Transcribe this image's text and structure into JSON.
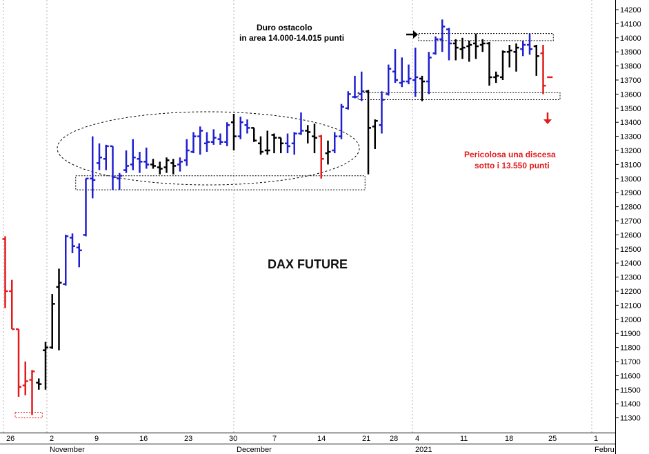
{
  "chart_data": {
    "type": "ohlc",
    "title": "DAX FUTURE",
    "y_axis": {
      "min": 11250,
      "max": 14250,
      "ticks": [
        11300,
        11400,
        11500,
        11600,
        11700,
        11800,
        11900,
        12000,
        12100,
        12200,
        12300,
        12400,
        12500,
        12600,
        12700,
        12800,
        12900,
        13000,
        13100,
        13200,
        13300,
        13400,
        13500,
        13600,
        13700,
        13800,
        13900,
        14000,
        14100,
        14200
      ],
      "position": "right"
    },
    "x_axis": {
      "tick_labels": [
        "26",
        "2",
        "9",
        "16",
        "23",
        "30",
        "7",
        "14",
        "21",
        "28",
        "4",
        "11",
        "18",
        "25",
        "1"
      ],
      "month_labels": [
        "November",
        "December",
        "2021",
        "Febru"
      ]
    },
    "series_colors": {
      "up_trend": "#1f1fd0",
      "neutral": "#000000",
      "down": "#e31a1a"
    },
    "bars": [
      {
        "c": "red",
        "o": 12570,
        "h": 12590,
        "l": 12080,
        "cl": 12200
      },
      {
        "c": "red",
        "o": 12200,
        "h": 12280,
        "l": 11930,
        "cl": 11930
      },
      {
        "c": "red",
        "o": 11930,
        "h": 11930,
        "l": 11450,
        "cl": 11520
      },
      {
        "c": "red",
        "o": 11530,
        "h": 11700,
        "l": 11460,
        "cl": 11560
      },
      {
        "c": "red",
        "o": 11570,
        "h": 11640,
        "l": 11320,
        "cl": 11630
      },
      {
        "c": "black",
        "o": 11550,
        "h": 11580,
        "l": 11500,
        "cl": 11540
      },
      {
        "c": "black",
        "o": 11780,
        "h": 11840,
        "l": 11500,
        "cl": 11800
      },
      {
        "c": "black",
        "o": 11800,
        "h": 12180,
        "l": 11790,
        "cl": 12110
      },
      {
        "c": "black",
        "o": 12230,
        "h": 12360,
        "l": 11780,
        "cl": 12260
      },
      {
        "c": "blue",
        "o": 12250,
        "h": 12600,
        "l": 12240,
        "cl": 12590
      },
      {
        "c": "blue",
        "o": 12580,
        "h": 12610,
        "l": 12470,
        "cl": 12520
      },
      {
        "c": "blue",
        "o": 12510,
        "h": 12540,
        "l": 12370,
        "cl": 12490
      },
      {
        "c": "blue",
        "o": 12600,
        "h": 13000,
        "l": 12590,
        "cl": 13000
      },
      {
        "c": "blue",
        "o": 13000,
        "h": 13300,
        "l": 12860,
        "cl": 12990
      },
      {
        "c": "blue",
        "o": 13110,
        "h": 13250,
        "l": 13060,
        "cl": 13150
      },
      {
        "c": "blue",
        "o": 13140,
        "h": 13240,
        "l": 13060,
        "cl": 13230
      },
      {
        "c": "blue",
        "o": 13230,
        "h": 13230,
        "l": 12920,
        "cl": 13010
      },
      {
        "c": "blue",
        "o": 13000,
        "h": 13040,
        "l": 12920,
        "cl": 13020
      },
      {
        "c": "blue",
        "o": 13060,
        "h": 13200,
        "l": 13040,
        "cl": 13090
      },
      {
        "c": "blue",
        "o": 13100,
        "h": 13280,
        "l": 13060,
        "cl": 13150
      },
      {
        "c": "blue",
        "o": 13140,
        "h": 13190,
        "l": 13040,
        "cl": 13120
      },
      {
        "c": "blue",
        "o": 13120,
        "h": 13220,
        "l": 13070,
        "cl": 13100
      },
      {
        "c": "black",
        "o": 13100,
        "h": 13140,
        "l": 13070,
        "cl": 13090
      },
      {
        "c": "black",
        "o": 13080,
        "h": 13120,
        "l": 13030,
        "cl": 13070
      },
      {
        "c": "black",
        "o": 13080,
        "h": 13150,
        "l": 13040,
        "cl": 13130
      },
      {
        "c": "black",
        "o": 13110,
        "h": 13140,
        "l": 13030,
        "cl": 13090
      },
      {
        "c": "blue",
        "o": 13100,
        "h": 13150,
        "l": 13050,
        "cl": 13120
      },
      {
        "c": "blue",
        "o": 13130,
        "h": 13280,
        "l": 13090,
        "cl": 13200
      },
      {
        "c": "blue",
        "o": 13190,
        "h": 13330,
        "l": 13180,
        "cl": 13300
      },
      {
        "c": "blue",
        "o": 13300,
        "h": 13370,
        "l": 13170,
        "cl": 13340
      },
      {
        "c": "blue",
        "o": 13250,
        "h": 13330,
        "l": 13190,
        "cl": 13260
      },
      {
        "c": "blue",
        "o": 13260,
        "h": 13350,
        "l": 13240,
        "cl": 13290
      },
      {
        "c": "blue",
        "o": 13280,
        "h": 13320,
        "l": 13240,
        "cl": 13260
      },
      {
        "c": "blue",
        "o": 13260,
        "h": 13400,
        "l": 13230,
        "cl": 13380
      },
      {
        "c": "black",
        "o": 13400,
        "h": 13460,
        "l": 13200,
        "cl": 13300
      },
      {
        "c": "blue",
        "o": 13300,
        "h": 13440,
        "l": 13280,
        "cl": 13400
      },
      {
        "c": "blue",
        "o": 13380,
        "h": 13420,
        "l": 13320,
        "cl": 13360
      },
      {
        "c": "black",
        "o": 13360,
        "h": 13360,
        "l": 13260,
        "cl": 13270
      },
      {
        "c": "black",
        "o": 13250,
        "h": 13300,
        "l": 13170,
        "cl": 13190
      },
      {
        "c": "black",
        "o": 13200,
        "h": 13340,
        "l": 13170,
        "cl": 13200
      },
      {
        "c": "black",
        "o": 13310,
        "h": 13320,
        "l": 13180,
        "cl": 13290
      },
      {
        "c": "black",
        "o": 13290,
        "h": 13290,
        "l": 13180,
        "cl": 13250
      },
      {
        "c": "blue",
        "o": 13250,
        "h": 13320,
        "l": 13180,
        "cl": 13230
      },
      {
        "c": "blue",
        "o": 13250,
        "h": 13330,
        "l": 13170,
        "cl": 13320
      },
      {
        "c": "blue",
        "o": 13320,
        "h": 13470,
        "l": 13310,
        "cl": 13340
      },
      {
        "c": "black",
        "o": 13340,
        "h": 13380,
        "l": 13250,
        "cl": 13330
      },
      {
        "c": "black",
        "o": 13300,
        "h": 13390,
        "l": 13180,
        "cl": 13290
      },
      {
        "c": "red",
        "o": 13300,
        "h": 13310,
        "l": 13000,
        "cl": 13140
      },
      {
        "c": "black",
        "o": 13180,
        "h": 13270,
        "l": 13100,
        "cl": 13190
      },
      {
        "c": "blue",
        "o": 13200,
        "h": 13330,
        "l": 13180,
        "cl": 13300
      },
      {
        "c": "blue",
        "o": 13300,
        "h": 13530,
        "l": 13280,
        "cl": 13510
      },
      {
        "c": "blue",
        "o": 13500,
        "h": 13620,
        "l": 13490,
        "cl": 13600
      },
      {
        "c": "blue",
        "o": 13580,
        "h": 13730,
        "l": 13570,
        "cl": 13580
      },
      {
        "c": "blue",
        "o": 13600,
        "h": 13760,
        "l": 13550,
        "cl": 13620
      },
      {
        "c": "black",
        "o": 13620,
        "h": 13630,
        "l": 13030,
        "cl": 13360
      },
      {
        "c": "black",
        "o": 13370,
        "h": 13420,
        "l": 13210,
        "cl": 13410
      },
      {
        "c": "blue",
        "o": 13380,
        "h": 13620,
        "l": 13320,
        "cl": 13560
      },
      {
        "c": "blue",
        "o": 13600,
        "h": 13810,
        "l": 13590,
        "cl": 13780
      },
      {
        "c": "blue",
        "o": 13760,
        "h": 13920,
        "l": 13680,
        "cl": 13700
      },
      {
        "c": "blue",
        "o": 13680,
        "h": 13860,
        "l": 13650,
        "cl": 13690
      },
      {
        "c": "blue",
        "o": 13690,
        "h": 13810,
        "l": 13670,
        "cl": 13710
      },
      {
        "c": "blue",
        "o": 13700,
        "h": 13930,
        "l": 13580,
        "cl": 13720
      },
      {
        "c": "black",
        "o": 13710,
        "h": 13730,
        "l": 13550,
        "cl": 13690
      },
      {
        "c": "blue",
        "o": 13690,
        "h": 13900,
        "l": 13600,
        "cl": 13860
      },
      {
        "c": "blue",
        "o": 13890,
        "h": 14010,
        "l": 13880,
        "cl": 13990
      },
      {
        "c": "blue",
        "o": 13990,
        "h": 14130,
        "l": 13900,
        "cl": 14080
      },
      {
        "c": "blue",
        "o": 14060,
        "h": 14070,
        "l": 13840,
        "cl": 13960
      },
      {
        "c": "black",
        "o": 13960,
        "h": 13990,
        "l": 13840,
        "cl": 13930
      },
      {
        "c": "black",
        "o": 13920,
        "h": 14000,
        "l": 13850,
        "cl": 13930
      },
      {
        "c": "black",
        "o": 13940,
        "h": 13980,
        "l": 13830,
        "cl": 13950
      },
      {
        "c": "black",
        "o": 13960,
        "h": 14030,
        "l": 13850,
        "cl": 13940
      },
      {
        "c": "black",
        "o": 13950,
        "h": 13990,
        "l": 13900,
        "cl": 13960
      },
      {
        "c": "black",
        "o": 13960,
        "h": 13970,
        "l": 13660,
        "cl": 13720
      },
      {
        "c": "black",
        "o": 13720,
        "h": 13760,
        "l": 13680,
        "cl": 13730
      },
      {
        "c": "black",
        "o": 13720,
        "h": 13910,
        "l": 13700,
        "cl": 13900
      },
      {
        "c": "black",
        "o": 13900,
        "h": 13950,
        "l": 13790,
        "cl": 13910
      },
      {
        "c": "black",
        "o": 13900,
        "h": 13960,
        "l": 13760,
        "cl": 13930
      },
      {
        "c": "blue",
        "o": 13920,
        "h": 13980,
        "l": 13870,
        "cl": 13950
      },
      {
        "c": "blue",
        "o": 13950,
        "h": 14030,
        "l": 13880,
        "cl": 13920
      },
      {
        "c": "black",
        "o": 13940,
        "h": 13950,
        "l": 13730,
        "cl": 13870
      },
      {
        "c": "red",
        "o": 13890,
        "h": 13950,
        "l": 13600,
        "cl": 13660
      },
      {
        "c": "red",
        "o": 13720,
        "h": 13720,
        "l": 13720,
        "cl": 13720
      }
    ],
    "annotations": {
      "resistance_label_line1": "Duro ostacolo",
      "resistance_label_line2": "in area 14.000-14.015 punti",
      "warning_line1": "Pericolosa una discesa",
      "warning_line2": "sotto i 13.550 punti"
    },
    "zones": [
      {
        "name": "resistance",
        "y_low": 13980,
        "y_high": 14030,
        "x_start_bar": 62,
        "x_end_bar": 81
      },
      {
        "name": "support-upper",
        "y_low": 13560,
        "y_high": 13610,
        "x_start_bar": 53,
        "x_end_bar": 82
      },
      {
        "name": "support-lower",
        "y_low": 12920,
        "y_high": 13020,
        "x_start_bar": 11,
        "x_end_bar": 53
      },
      {
        "name": "low-zone",
        "y_low": 11300,
        "y_high": 11340,
        "x_start_bar": 2,
        "x_end_bar": 5
      }
    ]
  }
}
